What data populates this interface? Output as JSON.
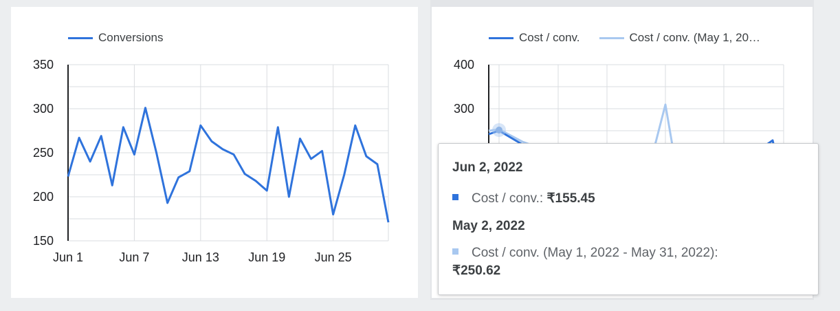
{
  "colors": {
    "primary": "#2f73dc",
    "secondary": "#a8c8f0",
    "grid": "#dadce0"
  },
  "chart_data": [
    {
      "type": "line",
      "title": "",
      "xlabel": "",
      "ylabel": "",
      "legend_position": "top-left",
      "grid": true,
      "ylim": [
        150,
        350
      ],
      "yticks": [
        "350",
        "300",
        "250",
        "200",
        "150"
      ],
      "xticks": [
        "Jun 1",
        "Jun 7",
        "Jun 13",
        "Jun 19",
        "Jun 25"
      ],
      "x": [
        "Jun 1",
        "Jun 2",
        "Jun 3",
        "Jun 4",
        "Jun 5",
        "Jun 6",
        "Jun 7",
        "Jun 8",
        "Jun 9",
        "Jun 10",
        "Jun 11",
        "Jun 12",
        "Jun 13",
        "Jun 14",
        "Jun 15",
        "Jun 16",
        "Jun 17",
        "Jun 18",
        "Jun 19",
        "Jun 20",
        "Jun 21",
        "Jun 22",
        "Jun 23",
        "Jun 24",
        "Jun 25",
        "Jun 26",
        "Jun 27",
        "Jun 28",
        "Jun 29",
        "Jun 30"
      ],
      "series": [
        {
          "name": "Conversions",
          "color": "#2f73dc",
          "values": [
            223,
            267,
            240,
            269,
            213,
            279,
            248,
            301,
            250,
            193,
            222,
            229,
            281,
            263,
            254,
            248,
            226,
            218,
            207,
            279,
            200,
            266,
            243,
            252,
            180,
            225,
            281,
            246,
            237,
            171
          ]
        }
      ]
    },
    {
      "type": "line",
      "title": "",
      "xlabel": "",
      "ylabel": "",
      "legend_position": "top-left",
      "grid": true,
      "ylim": [
        0,
        400
      ],
      "yticks": [
        "400",
        "300"
      ],
      "series": [
        {
          "name": "Cost / conv.",
          "color": "#2f73dc",
          "values": [
            155.45
          ]
        },
        {
          "name": "Cost / conv. (May 1, 20…",
          "color": "#a8c8f0",
          "values": [
            250.62
          ]
        }
      ]
    }
  ],
  "tooltip": {
    "date1": "Jun 2, 2022",
    "label1": "Cost / conv.:",
    "value1": "₹155.45",
    "date2": "May 2, 2022",
    "label2": "Cost / conv. (May 1, 2022 - May 31, 2022):",
    "value2": "₹250.62"
  }
}
